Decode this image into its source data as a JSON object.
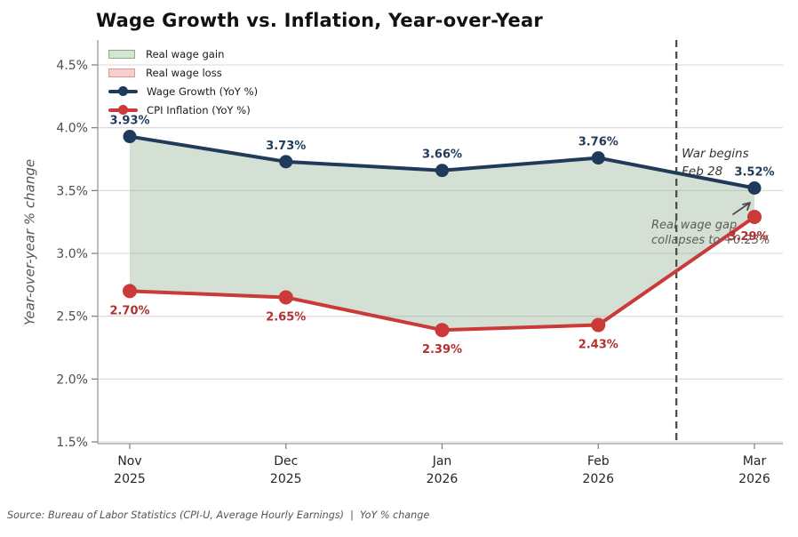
{
  "title": "Wage Growth vs. Inflation, Year-over-Year",
  "source_note": "Source: Bureau of Labor Statistics (CPI-U, Average Hourly Earnings)  |  YoY % change",
  "chart_data": {
    "type": "line",
    "title": "Wage Growth vs. Inflation, Year-over-Year",
    "ylabel": "Year-over-year % change",
    "ylim": [
      1.5,
      4.5
    ],
    "ytick_values": [
      4.5,
      4.0,
      3.5,
      3.0,
      2.5,
      2.0,
      1.5
    ],
    "ytick_labels": [
      "4.5%",
      "4.0%",
      "3.5%",
      "3.0%",
      "2.5%",
      "2.0%",
      "1.5%"
    ],
    "x_categories": [
      {
        "month": "Nov",
        "year": "2025"
      },
      {
        "month": "Dec",
        "year": "2025"
      },
      {
        "month": "Jan",
        "year": "2026"
      },
      {
        "month": "Feb",
        "year": "2026"
      },
      {
        "month": "Mar",
        "year": "2026"
      }
    ],
    "series": [
      {
        "name": "Wage Growth (YoY %)",
        "color": "#1f3a5a",
        "label_color": "#1f3a5a",
        "values": [
          3.93,
          3.73,
          3.66,
          3.76,
          3.52
        ],
        "point_labels": [
          "3.93%",
          "3.73%",
          "3.66%",
          "3.76%",
          "3.52%"
        ],
        "label_position": "above"
      },
      {
        "name": "CPI Inflation (YoY %)",
        "color": "#c93a38",
        "label_color": "#b23030",
        "values": [
          2.7,
          2.65,
          2.39,
          2.43,
          3.29
        ],
        "point_labels": [
          "2.70%",
          "2.65%",
          "2.39%",
          "2.43%",
          "3.29%"
        ],
        "label_position": "below"
      }
    ],
    "fill_between": {
      "gain_label": "Real wage gain",
      "gain_color": "#8fae8f",
      "loss_label": "Real wage loss",
      "loss_color": "#e8a0a0"
    },
    "legend": {
      "position": "upper-left",
      "items": [
        {
          "label": "Real wage gain",
          "type": "patch",
          "fill": "#d3e5d3",
          "border": "#8aab8a"
        },
        {
          "label": "Real wage loss",
          "type": "patch",
          "fill": "#f7cdcd",
          "border": "#dd9c9c"
        },
        {
          "label": "Wage Growth (YoY %)",
          "type": "line",
          "color": "#1f3a5a"
        },
        {
          "label": "CPI Inflation (YoY %)",
          "type": "line",
          "color": "#c93a38"
        }
      ]
    },
    "event_line": {
      "x_index": 3.5,
      "label": "War begins\nFeb 28",
      "color": "#4c4c4c"
    },
    "annotations": [
      {
        "id": "real-wage-gap",
        "text": "Real wage gap\ncollapses to +0.23%",
        "color": "#5b5b5b"
      }
    ],
    "grid": "horizontal-only"
  }
}
